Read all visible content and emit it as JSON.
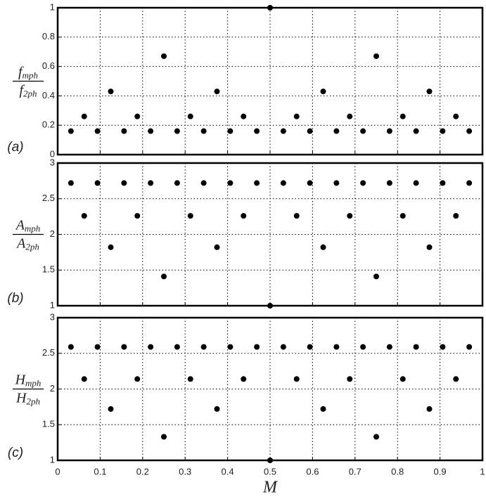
{
  "chart_data": [
    {
      "type": "scatter",
      "panel_label": "(a)",
      "ylabel": {
        "top": "f",
        "top_sub": "mph",
        "bottom": "f",
        "bottom_sub": "2ph"
      },
      "x": [
        0.03125,
        0.0625,
        0.09375,
        0.125,
        0.15625,
        0.1875,
        0.21875,
        0.25,
        0.28125,
        0.3125,
        0.34375,
        0.375,
        0.40625,
        0.4375,
        0.46875,
        0.5,
        0.53125,
        0.5625,
        0.59375,
        0.625,
        0.65625,
        0.6875,
        0.71875,
        0.75,
        0.78125,
        0.8125,
        0.84375,
        0.875,
        0.90625,
        0.9375,
        0.96875
      ],
      "values": [
        0.16,
        0.26,
        0.16,
        0.43,
        0.16,
        0.26,
        0.16,
        0.67,
        0.16,
        0.26,
        0.16,
        0.43,
        0.16,
        0.26,
        0.16,
        1,
        0.16,
        0.26,
        0.16,
        0.43,
        0.16,
        0.26,
        0.16,
        0.67,
        0.16,
        0.26,
        0.16,
        0.43,
        0.16,
        0.26,
        0.16
      ],
      "color": "#000000",
      "xlim": [
        0,
        1
      ],
      "xticks": [
        0,
        0.1,
        0.2,
        0.3,
        0.4,
        0.5,
        0.6,
        0.7,
        0.8,
        0.9,
        1
      ],
      "show_xticklabels": false,
      "ylim": [
        0,
        1
      ],
      "yticks": [
        0,
        0.2,
        0.4,
        0.6,
        0.8,
        1
      ],
      "grid": true
    },
    {
      "type": "scatter",
      "panel_label": "(b)",
      "ylabel": {
        "top": "A",
        "top_sub": "mph",
        "bottom": "A",
        "bottom_sub": "2ph"
      },
      "x": [
        0.03125,
        0.0625,
        0.09375,
        0.125,
        0.15625,
        0.1875,
        0.21875,
        0.25,
        0.28125,
        0.3125,
        0.34375,
        0.375,
        0.40625,
        0.4375,
        0.46875,
        0.5,
        0.53125,
        0.5625,
        0.59375,
        0.625,
        0.65625,
        0.6875,
        0.71875,
        0.75,
        0.78125,
        0.8125,
        0.84375,
        0.875,
        0.90625,
        0.9375,
        0.96875
      ],
      "values": [
        2.72,
        2.26,
        2.72,
        1.82,
        2.72,
        2.26,
        2.72,
        1.41,
        2.72,
        2.26,
        2.72,
        1.82,
        2.72,
        2.26,
        2.72,
        1,
        2.72,
        2.26,
        2.72,
        1.82,
        2.72,
        2.26,
        2.72,
        1.41,
        2.72,
        2.26,
        2.72,
        1.82,
        2.72,
        2.26,
        2.72
      ],
      "color": "#000000",
      "xlim": [
        0,
        1
      ],
      "xticks": [
        0,
        0.1,
        0.2,
        0.3,
        0.4,
        0.5,
        0.6,
        0.7,
        0.8,
        0.9,
        1
      ],
      "show_xticklabels": false,
      "ylim": [
        1,
        3
      ],
      "yticks": [
        1,
        1.5,
        2,
        2.5,
        3
      ],
      "grid": true
    },
    {
      "type": "scatter",
      "panel_label": "(c)",
      "ylabel": {
        "top": "H",
        "top_sub": "mph",
        "bottom": "H",
        "bottom_sub": "2ph"
      },
      "xlabel": "M",
      "x": [
        0.03125,
        0.0625,
        0.09375,
        0.125,
        0.15625,
        0.1875,
        0.21875,
        0.25,
        0.28125,
        0.3125,
        0.34375,
        0.375,
        0.40625,
        0.4375,
        0.46875,
        0.5,
        0.53125,
        0.5625,
        0.59375,
        0.625,
        0.65625,
        0.6875,
        0.71875,
        0.75,
        0.78125,
        0.8125,
        0.84375,
        0.875,
        0.90625,
        0.9375,
        0.96875
      ],
      "values": [
        2.59,
        2.14,
        2.59,
        1.72,
        2.59,
        2.14,
        2.59,
        1.33,
        2.59,
        2.14,
        2.59,
        1.72,
        2.59,
        2.14,
        2.59,
        1,
        2.59,
        2.14,
        2.59,
        1.72,
        2.59,
        2.14,
        2.59,
        1.33,
        2.59,
        2.14,
        2.59,
        1.72,
        2.59,
        2.14,
        2.59
      ],
      "color": "#000000",
      "xlim": [
        0,
        1
      ],
      "xticks": [
        0,
        0.1,
        0.2,
        0.3,
        0.4,
        0.5,
        0.6,
        0.7,
        0.8,
        0.9,
        1
      ],
      "show_xticklabels": true,
      "ylim": [
        1,
        3
      ],
      "yticks": [
        1,
        1.5,
        2,
        2.5,
        3
      ],
      "grid": true
    }
  ]
}
